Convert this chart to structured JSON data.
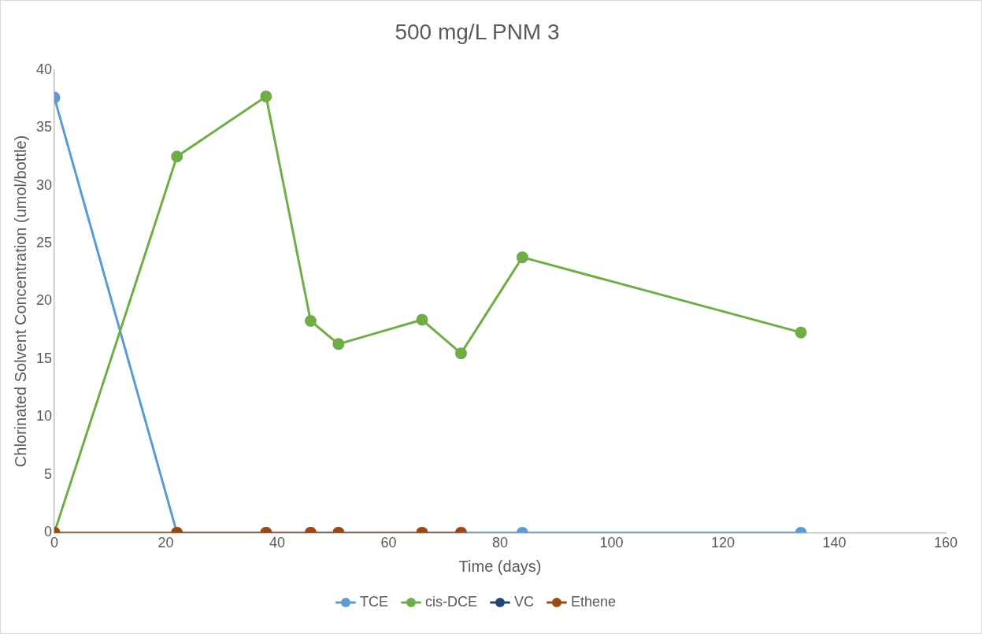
{
  "chart_data": {
    "type": "line",
    "title": "500 mg/L PNM 3",
    "xlabel": "Time (days)",
    "ylabel": "Chlorinated Solvent Concentration (umol/bottle)",
    "x": [
      0,
      22,
      38,
      46,
      51,
      66,
      73,
      84,
      134
    ],
    "series": [
      {
        "name": "TCE",
        "color": "#5b9bd5",
        "values": [
          37.6,
          0,
          0,
          0,
          0,
          0,
          0,
          0,
          0
        ]
      },
      {
        "name": "cis-DCE",
        "color": "#70ad47",
        "values": [
          0,
          32.5,
          37.7,
          18.3,
          16.3,
          18.4,
          15.5,
          23.8,
          17.3
        ]
      },
      {
        "name": "VC",
        "color": "#264478",
        "values": [
          null,
          null,
          null,
          null,
          null,
          null,
          null,
          null,
          null
        ]
      },
      {
        "name": "Ethene",
        "color": "#9e480e",
        "values": [
          0,
          0,
          0,
          0,
          0,
          0,
          0,
          null,
          null
        ]
      }
    ],
    "xlim": [
      0,
      160
    ],
    "xticks": [
      0,
      20,
      40,
      60,
      80,
      100,
      120,
      140,
      160
    ],
    "ylim": [
      0,
      40
    ],
    "yticks": [
      0,
      5,
      10,
      15,
      20,
      25,
      30,
      35,
      40
    ],
    "grid": false,
    "legend": "bottom",
    "marker": "circle",
    "line_style": "solid"
  }
}
